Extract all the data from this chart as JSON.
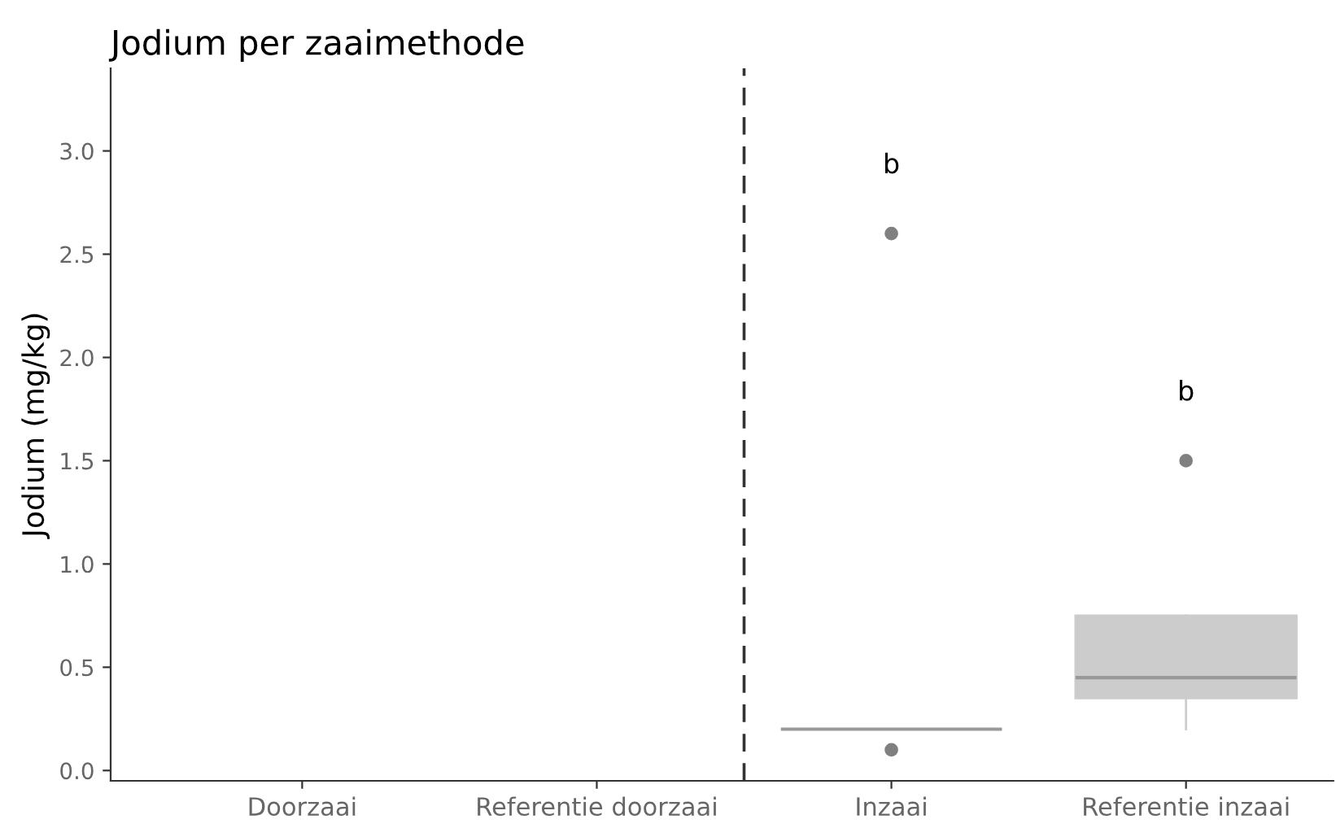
{
  "chart_data": {
    "type": "box",
    "title": "Jodium per zaaimethode",
    "ylabel": "Jodium (mg/kg)",
    "categories": [
      "Doorzaai",
      "Referentie doorzaai",
      "Inzaai",
      "Referentie inzaai"
    ],
    "boxes": [
      null,
      null,
      {
        "low": 0.2,
        "q1": 0.2,
        "median": 0.2,
        "q3": 0.2,
        "high": 0.2,
        "outliers": [
          0.1,
          2.6
        ]
      },
      {
        "low": 0.2,
        "q1": 0.35,
        "median": 0.45,
        "q3": 0.75,
        "high": 0.75,
        "outliers": [
          1.5
        ]
      }
    ],
    "color": "#cccccc",
    "ylim": [
      -0.05,
      3.4
    ],
    "yticks": [
      {
        "value": 0,
        "label": "0.0"
      },
      0.5,
      {
        "value": 1,
        "label": "1.0"
      },
      1.5,
      {
        "value": 2,
        "label": "2.0"
      },
      2.5,
      {
        "value": 3,
        "label": "3.0"
      }
    ],
    "annotations": [
      "b",
      "b"
    ],
    "grid": false,
    "legend": false
  }
}
